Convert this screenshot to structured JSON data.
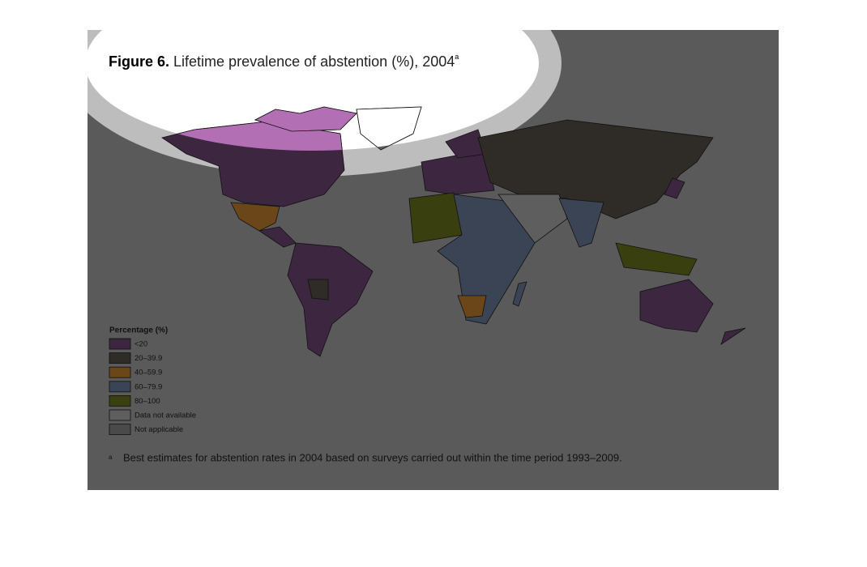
{
  "figure": {
    "label": "Figure 6.",
    "title": "Lifetime prevalence of abstention (%), 2004",
    "title_note": "a"
  },
  "legend": {
    "title": "Percentage (%)",
    "items": [
      {
        "label": "<20",
        "color": "#3d2640",
        "highlight": "#b26fb4"
      },
      {
        "label": "20–39.9",
        "color": "#2f2b26",
        "highlight": "#7a6e5a"
      },
      {
        "label": "40–59.9",
        "color": "#6b4618",
        "highlight": "#c78a3a"
      },
      {
        "label": "60–79.9",
        "color": "#3b4454",
        "highlight": "#7f93b3"
      },
      {
        "label": "80–100",
        "color": "#3a3f10",
        "highlight": "#8c9a2a"
      },
      {
        "label": "Data not available",
        "color": "#5e5e5e",
        "highlight": "#ffffff"
      },
      {
        "label": "Not applicable",
        "color": "#4a4a4a",
        "highlight": "#bbbbbb"
      }
    ]
  },
  "footnote": {
    "marker": "a",
    "text": "Best estimates for abstention rates in 2004 based on surveys carried out within the time period 1993–2009."
  }
}
